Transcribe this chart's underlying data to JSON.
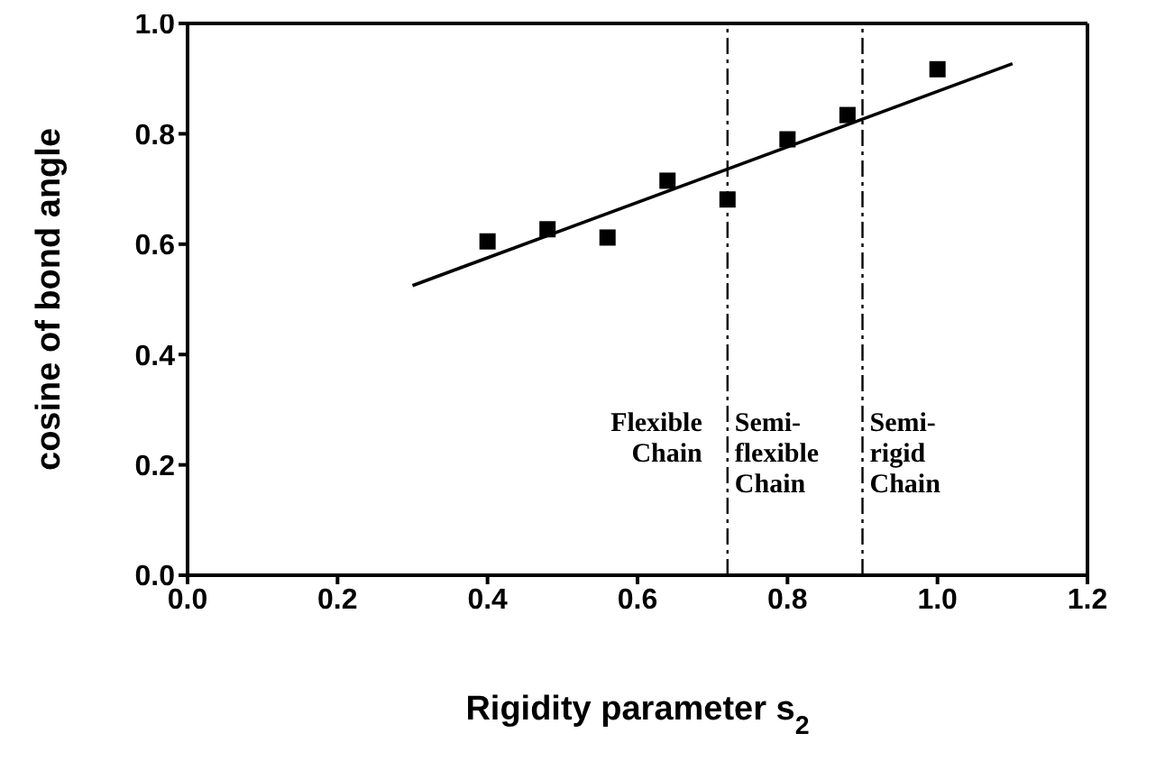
{
  "chart_data": {
    "type": "scatter",
    "xlabel": "Rigidity parameter s$_{2}$",
    "ylabel": "cosine of bond angle",
    "xlim": [
      0,
      1.2
    ],
    "xticks": [
      {
        "value": 0,
        "label": "0.0"
      },
      0.2,
      0.4,
      0.6,
      0.8,
      {
        "value": 1,
        "label": "1.0"
      },
      1.2
    ],
    "ylim": [
      0,
      1
    ],
    "yticks": [
      {
        "value": 0,
        "label": "0.0"
      },
      0.2,
      0.4,
      0.6,
      0.8,
      {
        "value": 1,
        "label": "1.0"
      }
    ],
    "x": [
      0.4,
      0.48,
      0.56,
      0.64,
      0.72,
      0.8,
      0.88,
      1.0
    ],
    "series": [
      {
        "type": "scatter",
        "color": "#000000",
        "marker": "square",
        "values": [
          0.605,
          0.627,
          0.612,
          0.715,
          0.681,
          0.79,
          0.834,
          0.917
        ]
      },
      {
        "type": "line",
        "color": "#000000",
        "marker": "none",
        "line_style": "solid",
        "x": [
          0.3,
          1.1
        ],
        "values": [
          0.525,
          0.927
        ]
      }
    ],
    "ref_lines": [
      {
        "axis": "x",
        "value": 0.72,
        "color": "#000000",
        "line_style": "dashed"
      },
      {
        "axis": "x",
        "value": 0.9,
        "color": "#000000",
        "line_style": "dashed"
      }
    ],
    "annotations": [
      "Flexible Chain",
      "Semi-flexible Chain",
      "Semi-rigid Chain"
    ],
    "grid": false,
    "legend": false
  }
}
